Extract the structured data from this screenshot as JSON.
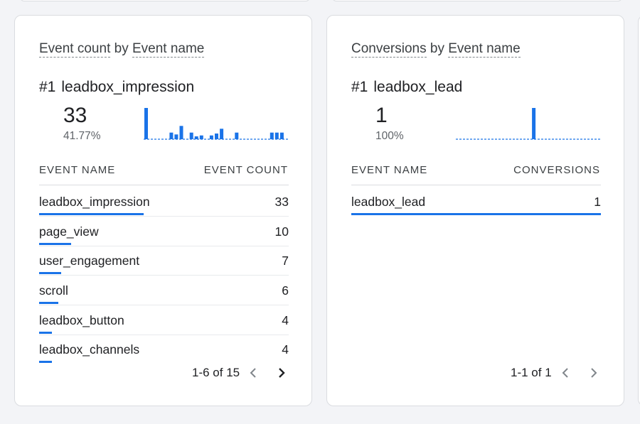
{
  "cards": [
    {
      "title_metric": "Event count",
      "title_by": "by",
      "title_dimension": "Event name",
      "top_rank": "#1",
      "top_name": "leadbox_impression",
      "top_value": "33",
      "top_percent": "41.77%",
      "col_name": "EVENT NAME",
      "col_value": "EVENT COUNT",
      "sparkline": [
        33,
        0,
        0,
        0,
        0,
        7,
        5,
        14,
        0,
        7,
        3,
        4,
        0,
        4,
        6,
        11,
        0,
        0,
        7,
        0,
        0,
        0,
        0,
        0,
        0,
        7,
        7,
        7,
        0
      ],
      "rows": [
        {
          "name": "leadbox_impression",
          "value": "33",
          "fraction": 1.0
        },
        {
          "name": "page_view",
          "value": "10",
          "fraction": 0.303
        },
        {
          "name": "user_engagement",
          "value": "7",
          "fraction": 0.212
        },
        {
          "name": "scroll",
          "value": "6",
          "fraction": 0.182
        },
        {
          "name": "leadbox_button",
          "value": "4",
          "fraction": 0.121
        },
        {
          "name": "leadbox_channels",
          "value": "4",
          "fraction": 0.121
        }
      ],
      "pager": "1-6 of 15"
    },
    {
      "title_metric": "Conversions",
      "title_by": "by",
      "title_dimension": "Event name",
      "top_rank": "#1",
      "top_name": "leadbox_lead",
      "top_value": "1",
      "top_percent": "100%",
      "col_name": "EVENT NAME",
      "col_value": "CONVERSIONS",
      "sparkline": [
        0,
        0,
        0,
        0,
        0,
        0,
        0,
        0,
        0,
        0,
        0,
        0,
        0,
        0,
        0,
        1,
        0,
        0,
        0,
        0,
        0,
        0,
        0,
        0,
        0,
        0,
        0,
        0,
        0
      ],
      "rows": [
        {
          "name": "leadbox_lead",
          "value": "1",
          "fraction": 1.0
        }
      ],
      "pager": "1-1 of 1"
    }
  ],
  "icons": {
    "prev": "chevron-left-icon",
    "next": "chevron-right-icon"
  },
  "colors": {
    "accent": "#1a73e8",
    "nav_enabled": "#202124",
    "nav_disabled": "#80868b"
  }
}
